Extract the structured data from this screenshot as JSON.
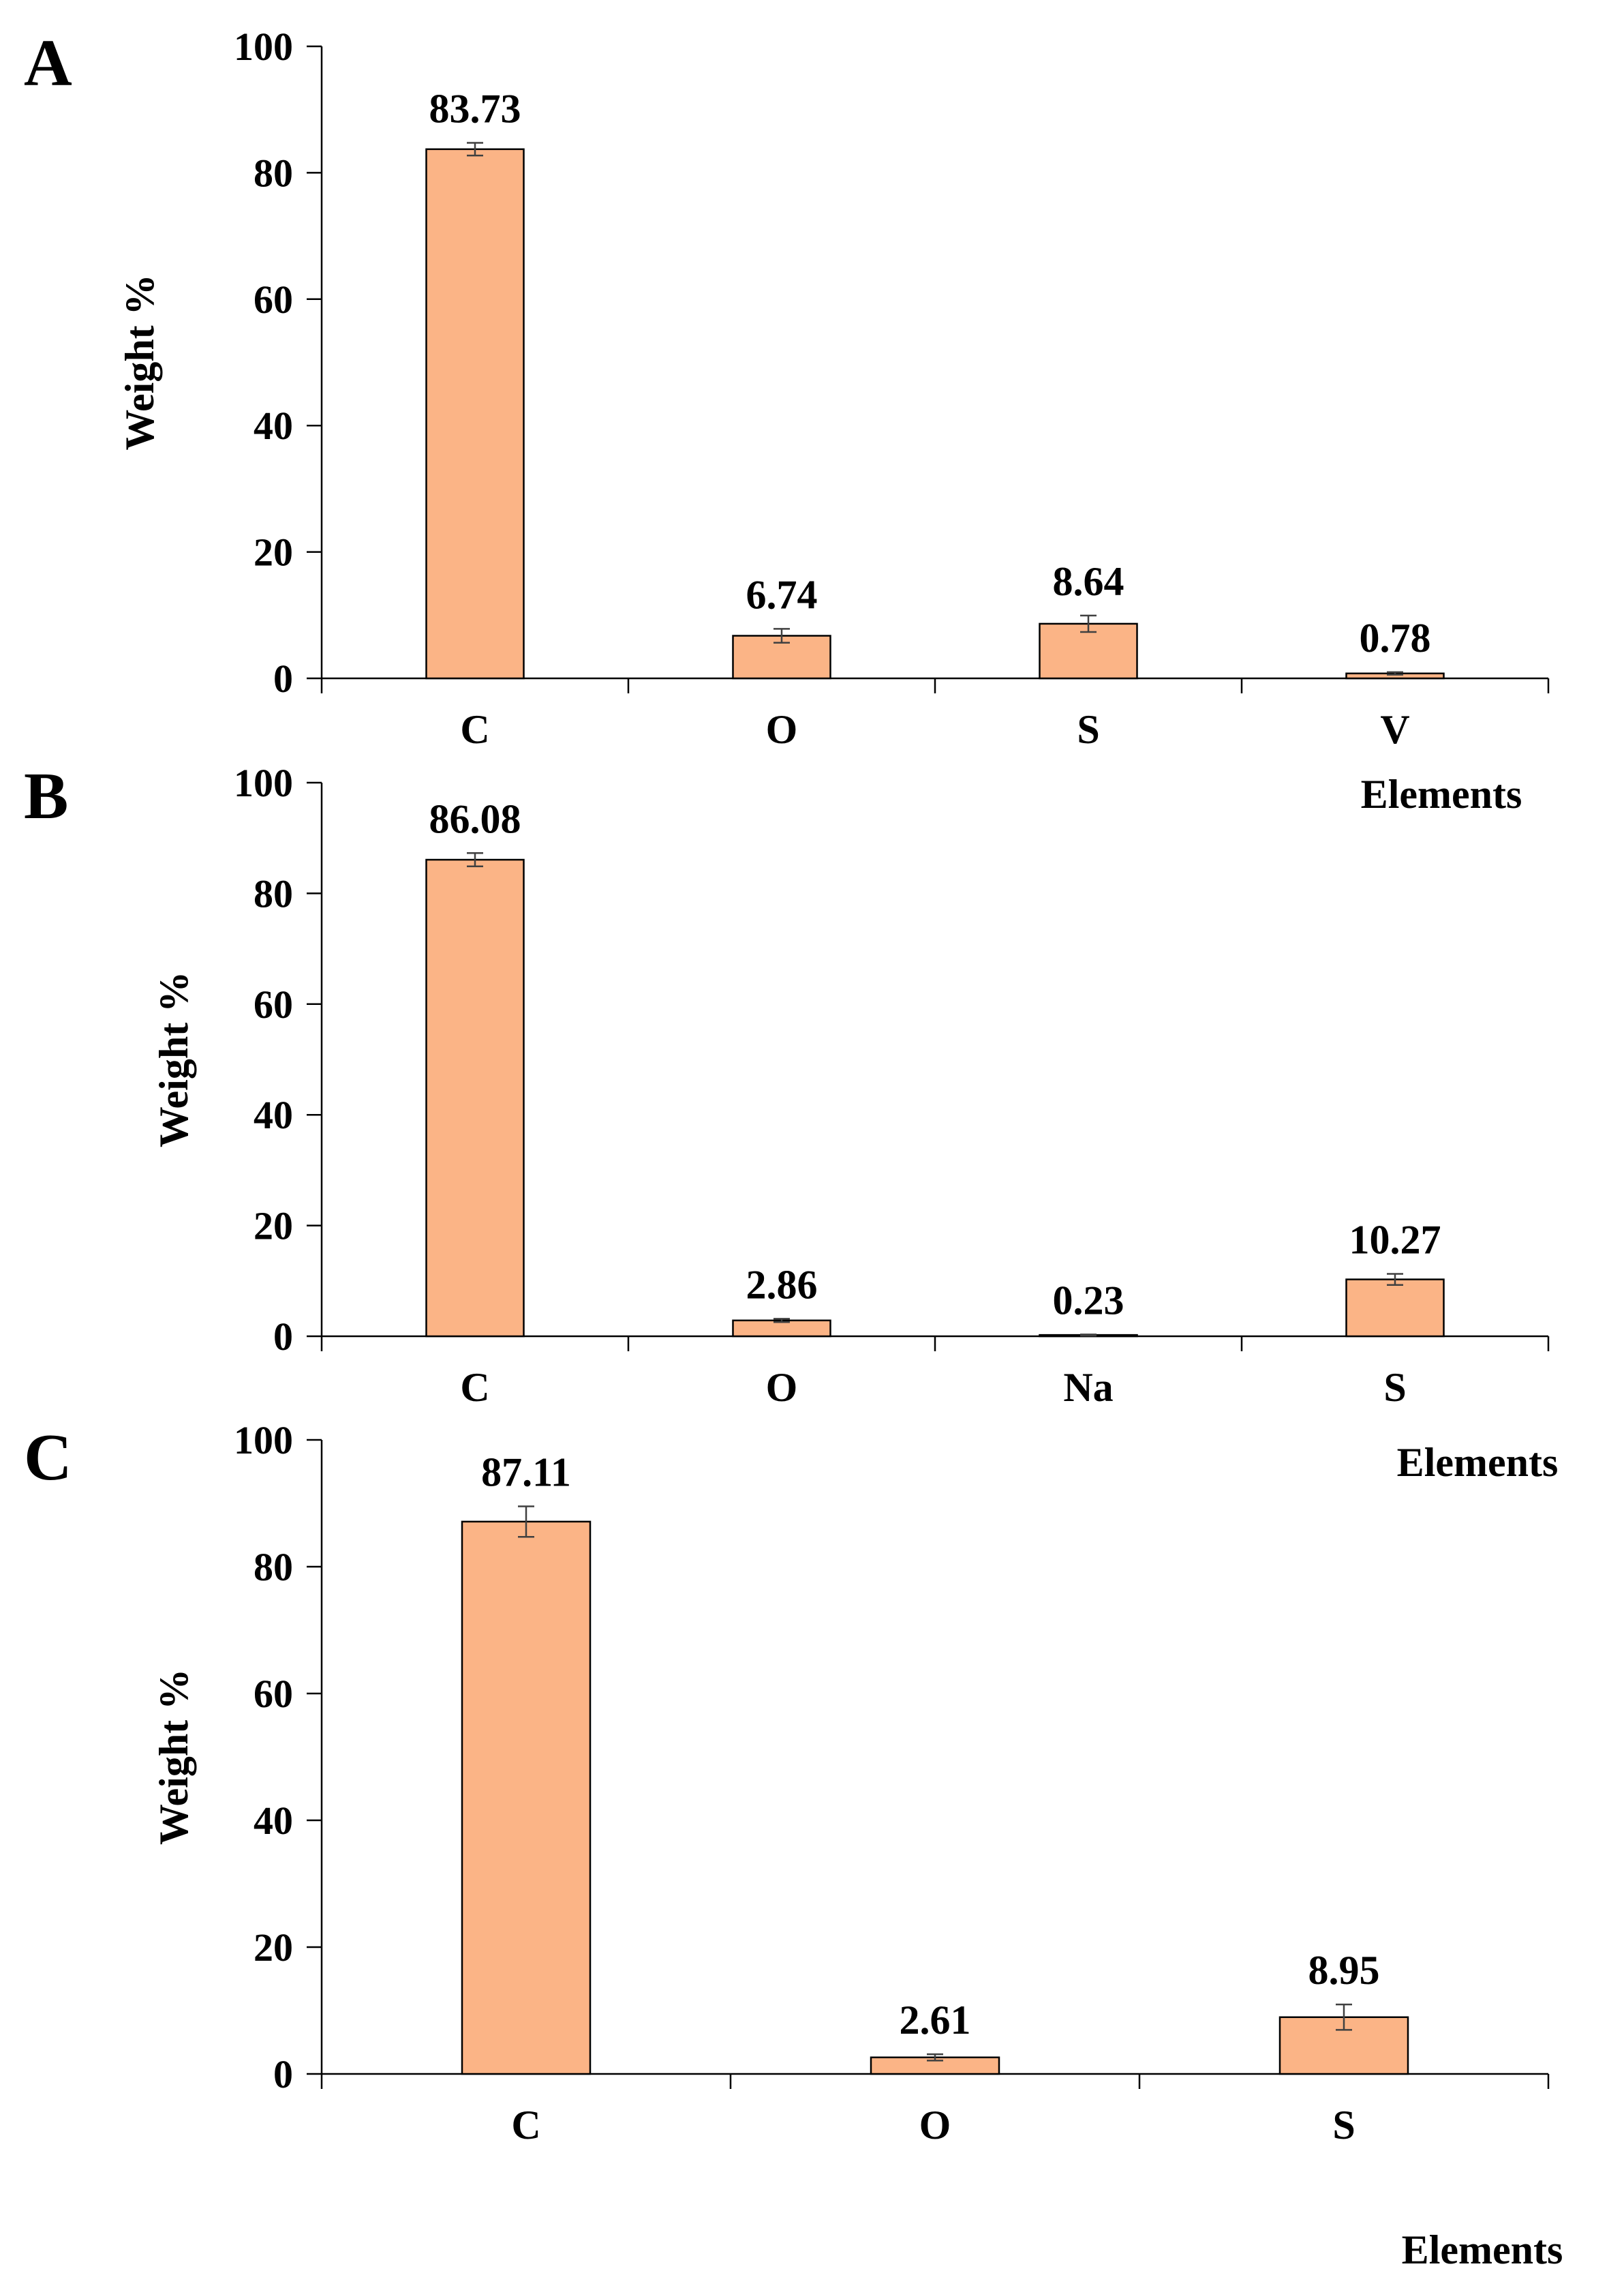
{
  "colors": {
    "bar_fill": "#FBB486",
    "bar_stroke": "#000000",
    "axis": "#000000",
    "error_bar": "#404040"
  },
  "chart_data": [
    {
      "type": "bar",
      "panel_label": "A",
      "categories": [
        "C",
        "O",
        "S",
        "V"
      ],
      "values": [
        83.73,
        6.74,
        8.64,
        0.78
      ],
      "value_labels": [
        "83.73",
        "6.74",
        "8.64",
        "0.78"
      ],
      "errors": [
        1.0,
        1.1,
        1.3,
        0.2
      ],
      "xlabel": "Elements",
      "ylabel": "Weight %",
      "ylim": [
        0,
        100
      ],
      "yticks": [
        "0",
        "20",
        "40",
        "60",
        "80",
        "100"
      ],
      "grid": false,
      "legend": "none"
    },
    {
      "type": "bar",
      "panel_label": "B",
      "categories": [
        "C",
        "O",
        "Na",
        "S"
      ],
      "values": [
        86.08,
        2.86,
        0.23,
        10.27
      ],
      "value_labels": [
        "86.08",
        "2.86",
        "0.23",
        "10.27"
      ],
      "errors": [
        1.2,
        0.3,
        0.1,
        1.0
      ],
      "xlabel": "Elements",
      "ylabel": "Weight %",
      "ylim": [
        0,
        100
      ],
      "yticks": [
        "0",
        "20",
        "40",
        "60",
        "80",
        "100"
      ],
      "grid": false,
      "legend": "none"
    },
    {
      "type": "bar",
      "panel_label": "C",
      "categories": [
        "C",
        "O",
        "S"
      ],
      "values": [
        87.11,
        2.61,
        8.95
      ],
      "value_labels": [
        "87.11",
        "2.61",
        "8.95"
      ],
      "errors": [
        2.4,
        0.5,
        2.0
      ],
      "xlabel": "Elements",
      "ylabel": "Weight %",
      "ylim": [
        0,
        100
      ],
      "yticks": [
        "0",
        "20",
        "40",
        "60",
        "80",
        "100"
      ],
      "grid": false,
      "legend": "none"
    }
  ]
}
